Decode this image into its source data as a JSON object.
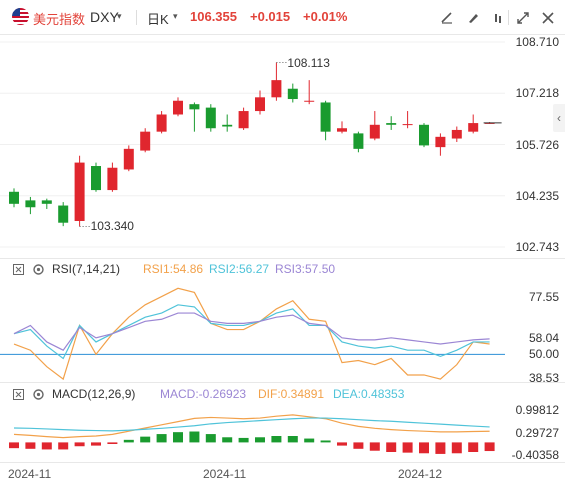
{
  "header": {
    "flag_icon": "us-flag-icon",
    "name": "美元指数",
    "code": "DXY",
    "code_caret": "▾",
    "period": "日K",
    "period_caret": "▾",
    "price": "106.355",
    "change": "+0.015",
    "change_pct": "+0.01%",
    "tools": [
      "draw-line-icon",
      "brush-icon",
      "drop-icon",
      "candle-settings-icon",
      "fullscreen-icon",
      "close-icon"
    ]
  },
  "colors": {
    "up": "#e0262e",
    "down": "#1a9b2f",
    "line": "#2b8fd6",
    "orange": "#f2a14a",
    "purple": "#9b86d4",
    "cyan": "#4fc3d9"
  },
  "chart_data": [
    {
      "type": "candlestick",
      "price_axis": [
        "108.710",
        "107.218",
        "105.726",
        "104.235",
        "102.743"
      ],
      "ylim": [
        102.743,
        108.71
      ],
      "annotations": {
        "high": "108.113",
        "low": "103.340"
      },
      "candles": [
        {
          "o": 104.35,
          "c": 104.0,
          "h": 104.45,
          "l": 103.9
        },
        {
          "o": 104.1,
          "c": 103.9,
          "h": 104.2,
          "l": 103.7
        },
        {
          "o": 104.1,
          "c": 104.0,
          "h": 104.15,
          "l": 103.85
        },
        {
          "o": 103.95,
          "c": 103.45,
          "h": 104.05,
          "l": 103.35
        },
        {
          "o": 103.5,
          "c": 105.2,
          "h": 105.4,
          "l": 103.34
        },
        {
          "o": 105.1,
          "c": 104.4,
          "h": 105.2,
          "l": 104.35
        },
        {
          "o": 104.4,
          "c": 105.05,
          "h": 105.2,
          "l": 104.35
        },
        {
          "o": 105.0,
          "c": 105.6,
          "h": 105.7,
          "l": 104.95
        },
        {
          "o": 105.55,
          "c": 106.1,
          "h": 106.2,
          "l": 105.5
        },
        {
          "o": 106.1,
          "c": 106.6,
          "h": 106.7,
          "l": 106.05
        },
        {
          "o": 106.6,
          "c": 107.0,
          "h": 107.1,
          "l": 106.55
        },
        {
          "o": 106.9,
          "c": 106.75,
          "h": 106.95,
          "l": 106.1
        },
        {
          "o": 106.8,
          "c": 106.2,
          "h": 106.9,
          "l": 106.1
        },
        {
          "o": 106.3,
          "c": 106.25,
          "h": 106.6,
          "l": 106.1
        },
        {
          "o": 106.2,
          "c": 106.7,
          "h": 106.8,
          "l": 106.15
        },
        {
          "o": 106.7,
          "c": 107.1,
          "h": 107.3,
          "l": 106.6
        },
        {
          "o": 107.1,
          "c": 107.6,
          "h": 108.113,
          "l": 107.0
        },
        {
          "o": 107.35,
          "c": 107.05,
          "h": 107.5,
          "l": 106.95
        },
        {
          "o": 107.0,
          "c": 107.0,
          "h": 107.6,
          "l": 106.9
        },
        {
          "o": 106.95,
          "c": 106.1,
          "h": 107.0,
          "l": 105.85
        },
        {
          "o": 106.1,
          "c": 106.2,
          "h": 106.4,
          "l": 106.05
        },
        {
          "o": 106.05,
          "c": 105.6,
          "h": 106.1,
          "l": 105.5
        },
        {
          "o": 105.9,
          "c": 106.3,
          "h": 106.7,
          "l": 105.85
        },
        {
          "o": 106.35,
          "c": 106.3,
          "h": 106.55,
          "l": 106.15
        },
        {
          "o": 106.3,
          "c": 106.32,
          "h": 106.7,
          "l": 106.2
        },
        {
          "o": 106.3,
          "c": 105.7,
          "h": 106.35,
          "l": 105.65
        },
        {
          "o": 105.65,
          "c": 105.95,
          "h": 106.05,
          "l": 105.4
        },
        {
          "o": 105.9,
          "c": 106.15,
          "h": 106.25,
          "l": 105.8
        },
        {
          "o": 106.1,
          "c": 106.35,
          "h": 106.6,
          "l": 106.05
        },
        {
          "o": 106.34,
          "c": 106.355,
          "h": 106.38,
          "l": 106.33
        }
      ]
    },
    {
      "type": "line",
      "name": "RSI",
      "header": "RSI(7,14,21)",
      "legend": [
        {
          "label": "RSI1:54.86",
          "color": "#f2a14a"
        },
        {
          "label": "RSI2:56.27",
          "color": "#4fc3d9"
        },
        {
          "label": "RSI3:57.50",
          "color": "#9b86d4"
        }
      ],
      "axis": [
        "77.55",
        "58.04",
        "50.00",
        "38.53"
      ],
      "ylim": [
        38.53,
        87
      ],
      "series": [
        {
          "name": "RSI1",
          "color": "#f2a14a",
          "values": [
            55,
            52,
            44,
            38,
            64,
            50,
            60,
            68,
            74,
            78,
            82,
            80,
            65,
            62,
            62,
            66,
            72,
            76,
            67,
            66,
            46,
            47,
            45,
            48,
            40,
            40,
            38,
            45,
            56,
            55
          ]
        },
        {
          "name": "RSI2",
          "color": "#4fc3d9",
          "values": [
            60,
            62,
            54,
            48,
            64,
            56,
            60,
            64,
            68,
            70,
            74,
            73,
            65,
            64,
            64,
            66,
            70,
            72,
            64,
            64,
            56,
            54,
            53,
            54,
            52,
            52,
            49,
            52,
            56,
            56
          ]
        },
        {
          "name": "RSI3",
          "color": "#9b86d4",
          "values": [
            60,
            64,
            56,
            52,
            63,
            58,
            60,
            63,
            66,
            67,
            70,
            70,
            66,
            65,
            65,
            66,
            68,
            69,
            65,
            64,
            58,
            57,
            57,
            58,
            57,
            56,
            55,
            56,
            57,
            57.5
          ]
        }
      ]
    },
    {
      "type": "bar",
      "name": "MACD",
      "header": "MACD(12,26,9)",
      "legend": [
        {
          "label": "MACD:-0.26923",
          "color": "#9b86d4"
        },
        {
          "label": "DIF:0.34891",
          "color": "#f2a14a"
        },
        {
          "label": "DEA:0.48353",
          "color": "#4fc3d9"
        }
      ],
      "axis": [
        "0.99812",
        "0.29727",
        "-0.40358"
      ],
      "ylim": [
        -0.55,
        1.2
      ],
      "histogram": [
        -0.18,
        -0.2,
        -0.22,
        -0.22,
        -0.12,
        -0.1,
        -0.05,
        0.08,
        0.18,
        0.26,
        0.32,
        0.34,
        0.26,
        0.16,
        0.14,
        0.16,
        0.2,
        0.2,
        0.12,
        0.06,
        -0.1,
        -0.2,
        -0.26,
        -0.3,
        -0.32,
        -0.34,
        -0.36,
        -0.34,
        -0.3,
        -0.27
      ],
      "dif": [
        0.25,
        0.22,
        0.18,
        0.15,
        0.18,
        0.2,
        0.25,
        0.35,
        0.45,
        0.55,
        0.65,
        0.75,
        0.78,
        0.76,
        0.74,
        0.76,
        0.82,
        0.86,
        0.8,
        0.74,
        0.6,
        0.5,
        0.44,
        0.4,
        0.37,
        0.35,
        0.33,
        0.33,
        0.34,
        0.349
      ],
      "dea": [
        0.45,
        0.44,
        0.42,
        0.4,
        0.38,
        0.37,
        0.36,
        0.38,
        0.41,
        0.44,
        0.48,
        0.52,
        0.58,
        0.62,
        0.65,
        0.68,
        0.71,
        0.74,
        0.76,
        0.76,
        0.74,
        0.71,
        0.68,
        0.66,
        0.63,
        0.6,
        0.57,
        0.54,
        0.51,
        0.484
      ],
      "x_labels": [
        "2024-11",
        "2024-11",
        "2024-12"
      ]
    }
  ]
}
